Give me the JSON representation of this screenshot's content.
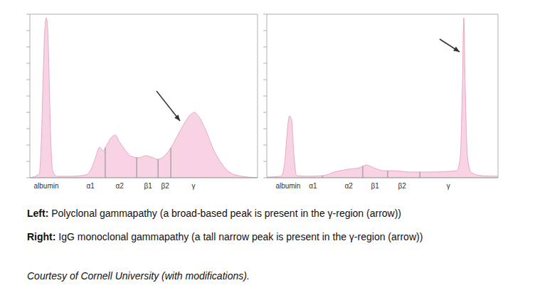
{
  "chart_data": [
    {
      "type": "area",
      "color": "#f8d3e3",
      "tick_labels": "x",
      "xlim": [
        0,
        100
      ],
      "ylim": [
        0,
        100
      ],
      "yticks": [
        0,
        10,
        20,
        30,
        40,
        50,
        60,
        70,
        80,
        90,
        100
      ],
      "xticks": [
        {
          "value": 7.2,
          "label": "albumin"
        },
        {
          "value": 26.6,
          "label": "α1"
        },
        {
          "value": 39.4,
          "label": "α2"
        },
        {
          "value": 51.9,
          "label": "β1"
        },
        {
          "value": 59.4,
          "label": "β2"
        },
        {
          "value": 71.9,
          "label": "γ"
        }
      ],
      "x": [
        0,
        4.1,
        5.0,
        5.9,
        6.6,
        7.2,
        7.8,
        8.4,
        9.1,
        10.0,
        11.9,
        18.1,
        24.4,
        26.9,
        28.8,
        30.6,
        32.2,
        33.8,
        35.9,
        37.5,
        39.4,
        41.6,
        44.7,
        47.8,
        50.9,
        54.1,
        56.3,
        58.8,
        61.9,
        65.0,
        68.1,
        70.6,
        72.2,
        74.4,
        77.5,
        80.6,
        83.8,
        86.9,
        91.6,
        100
      ],
      "values": [
        0,
        2.2,
        21.7,
        65.2,
        91.3,
        97.8,
        91.3,
        65.2,
        26.1,
        4.3,
        0.9,
        0.9,
        1.7,
        5.2,
        12.2,
        18.7,
        16.5,
        20.0,
        24.8,
        26.1,
        21.7,
        17.4,
        13.0,
        12.2,
        13.5,
        12.2,
        11.3,
        13.0,
        18.3,
        26.1,
        33.9,
        38.7,
        40.0,
        37.0,
        28.3,
        17.4,
        9.6,
        4.3,
        1.3,
        0
      ],
      "dividers": [
        33.1,
        46.9,
        56.3,
        61.9
      ]
    },
    {
      "type": "area",
      "color": "#f8d3e3",
      "tick_labels": "x",
      "xlim": [
        0,
        100
      ],
      "ylim": [
        0,
        100
      ],
      "yticks": [
        0,
        10,
        20,
        30,
        40,
        50,
        60,
        70,
        80,
        90,
        100
      ],
      "xticks": [
        {
          "value": 9.2,
          "label": "albumin"
        },
        {
          "value": 20.0,
          "label": "α1"
        },
        {
          "value": 35.4,
          "label": "α2"
        },
        {
          "value": 46.8,
          "label": "β1"
        },
        {
          "value": 58.5,
          "label": "β2"
        },
        {
          "value": 78.5,
          "label": "γ"
        }
      ],
      "x": [
        0,
        6.2,
        7.7,
        8.6,
        9.8,
        10.8,
        11.7,
        12.9,
        16.9,
        24.6,
        29.2,
        35.4,
        40.0,
        43.1,
        46.2,
        50.8,
        55.4,
        61.5,
        69.2,
        78.5,
        82.2,
        83.7,
        84.6,
        85.2,
        85.8,
        86.8,
        88.3,
        92.3,
        100
      ],
      "values": [
        0.4,
        0.9,
        8.7,
        23.9,
        37.8,
        34.8,
        14.3,
        1.3,
        0.9,
        1.3,
        3.5,
        5.2,
        6.1,
        7.8,
        6.1,
        4.3,
        4.3,
        3.5,
        3.5,
        3.9,
        4.3,
        13.0,
        56.5,
        97.8,
        56.5,
        13.0,
        3.5,
        1.3,
        0.9
      ],
      "dividers": [
        24.0,
        41.5,
        52.3,
        66.2
      ]
    }
  ],
  "captions": [
    {
      "lead": "Left:",
      "text": "Polyclonal gammapathy (a broad-based peak is present in the γ-region (arrow))"
    },
    {
      "lead": "Right:",
      "text": "IgG monoclonal gammapathy (a tall narrow peak is present in the γ-region (arrow))"
    }
  ],
  "credit": "Courtesy of Cornell University (with modifications)."
}
